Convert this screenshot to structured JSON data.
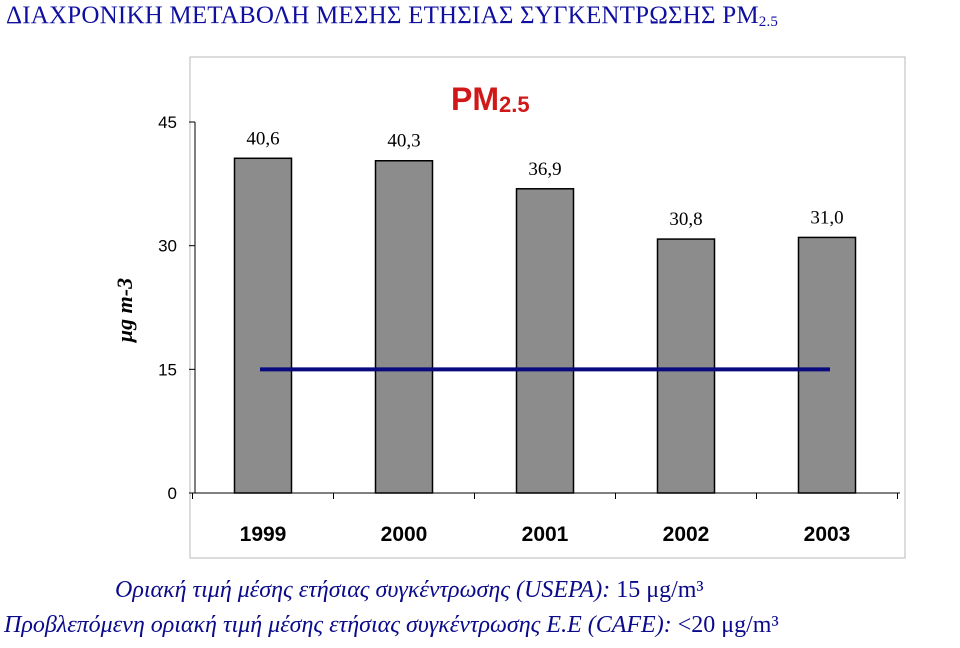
{
  "title": {
    "main": "ΔΙΑΧΡΟΝΙΚΗ ΜΕΤΑΒΟΛΗ ΜΕΣΗΣ ΕΤΗΣΙΑΣ ΣΥΓΚΕΝΤΡΩΣΗΣ PM",
    "sub": "2.5"
  },
  "chart_data": {
    "type": "bar",
    "title": "PM",
    "title_sub": "2.5",
    "ylabel": "μg m-3",
    "xlabel": "",
    "categories": [
      "1999",
      "2000",
      "2001",
      "2002",
      "2003"
    ],
    "values": [
      40.6,
      40.3,
      36.9,
      30.8,
      31.0
    ],
    "data_labels": [
      "40,6",
      "40,3",
      "36,9",
      "30,8",
      "31,0"
    ],
    "ylim": [
      0,
      45
    ],
    "yticks": [
      "0",
      "15",
      "30",
      "45"
    ],
    "reference_line": {
      "value": 15,
      "color": "#0a0a80"
    },
    "bar_color": "#8c8c8c",
    "grid": false,
    "legend": "none"
  },
  "footnotes": [
    {
      "text": "Οριακή τιμή μέσης ετήσιας συγκέντρωσης (USEPA): ",
      "value": " 15 μg/m³"
    },
    {
      "text": "Προβλεπόμενη οριακή τιμή μέσης ετήσιας συγκέντρωσης Ε.Ε (CAFE): ",
      "value": "<20 μg/m³"
    }
  ]
}
